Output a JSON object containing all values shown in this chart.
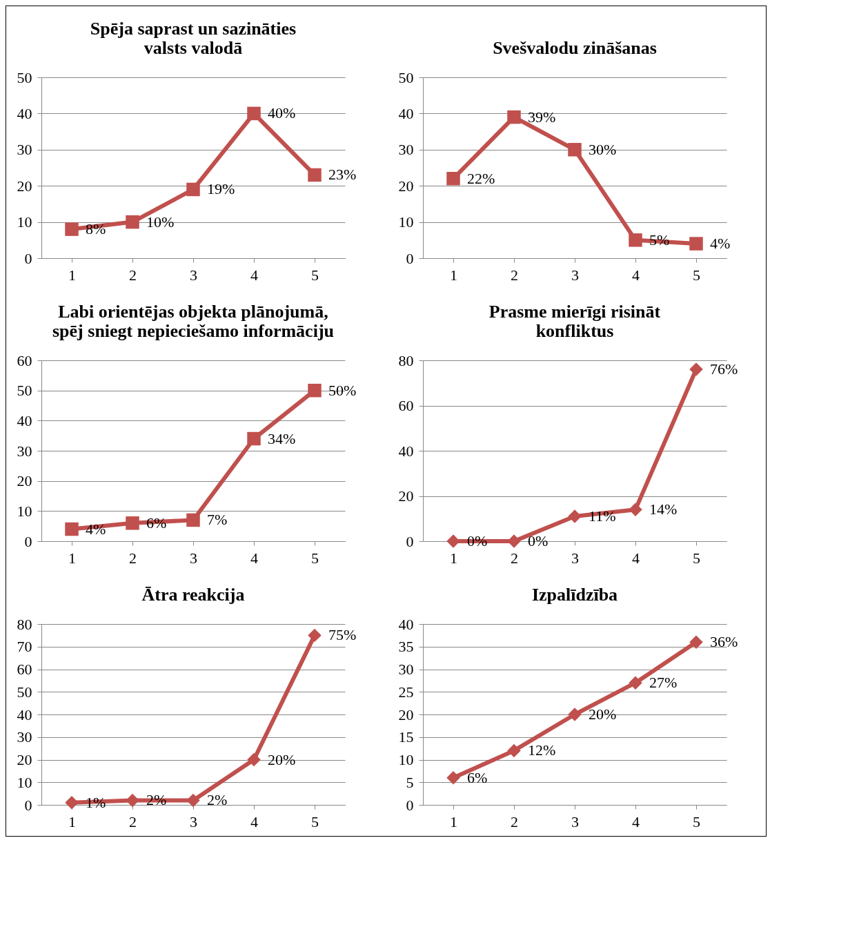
{
  "chart_data": [
    {
      "type": "line",
      "title": "Spēja saprast un sazināties\nvalsts valodā",
      "categories": [
        "1",
        "2",
        "3",
        "4",
        "5"
      ],
      "series": [
        {
          "color": "#c0504d",
          "values": [
            8,
            10,
            19,
            40,
            23
          ],
          "value_labels": [
            "8%",
            "10%",
            "19%",
            "40%",
            "23%"
          ]
        }
      ],
      "ylim": [
        0,
        50
      ],
      "yticks": [
        0,
        10,
        20,
        30,
        40,
        50
      ],
      "grid": "y",
      "marker": "square",
      "legend": false
    },
    {
      "type": "line",
      "title": "Svešvalodu zināšanas",
      "categories": [
        "1",
        "2",
        "3",
        "4",
        "5"
      ],
      "series": [
        {
          "color": "#c0504d",
          "values": [
            22,
            39,
            30,
            5,
            4
          ],
          "value_labels": [
            "22%",
            "39%",
            "30%",
            "5%",
            "4%"
          ]
        }
      ],
      "ylim": [
        0,
        50
      ],
      "yticks": [
        0,
        10,
        20,
        30,
        40,
        50
      ],
      "grid": "y",
      "marker": "square",
      "legend": false
    },
    {
      "type": "line",
      "title": "Labi orientējas objekta plānojumā,\nspēj sniegt nepieciešamo informāciju",
      "categories": [
        "1",
        "2",
        "3",
        "4",
        "5"
      ],
      "series": [
        {
          "color": "#c0504d",
          "values": [
            4,
            6,
            7,
            34,
            50
          ],
          "value_labels": [
            "4%",
            "6%",
            "7%",
            "34%",
            "50%"
          ]
        }
      ],
      "ylim": [
        0,
        60
      ],
      "yticks": [
        0,
        10,
        20,
        30,
        40,
        50,
        60
      ],
      "grid": "y",
      "marker": "square",
      "legend": false
    },
    {
      "type": "line",
      "title": "Prasme mierīgi risināt\nkonfliktus",
      "categories": [
        "1",
        "2",
        "3",
        "4",
        "5"
      ],
      "series": [
        {
          "color": "#c0504d",
          "values": [
            0,
            0,
            11,
            14,
            76
          ],
          "value_labels": [
            "0%",
            "0%",
            "11%",
            "14%",
            "76%"
          ]
        }
      ],
      "ylim": [
        0,
        80
      ],
      "yticks": [
        0,
        20,
        40,
        60,
        80
      ],
      "grid": "y",
      "marker": "diamond",
      "legend": false
    },
    {
      "type": "line",
      "title": "Ātra reakcija",
      "categories": [
        "1",
        "2",
        "3",
        "4",
        "5"
      ],
      "series": [
        {
          "color": "#c0504d",
          "values": [
            1,
            2,
            2,
            20,
            75
          ],
          "value_labels": [
            "1%",
            "2%",
            "2%",
            "20%",
            "75%"
          ]
        }
      ],
      "ylim": [
        0,
        80
      ],
      "yticks": [
        0,
        10,
        20,
        30,
        40,
        50,
        60,
        70,
        80
      ],
      "grid": "y",
      "marker": "diamond",
      "legend": false
    },
    {
      "type": "line",
      "title": "Izpalīdzība",
      "categories": [
        "1",
        "2",
        "3",
        "4",
        "5"
      ],
      "series": [
        {
          "color": "#c0504d",
          "values": [
            6,
            12,
            20,
            27,
            36
          ],
          "value_labels": [
            "6%",
            "12%",
            "20%",
            "27%",
            "36%"
          ]
        }
      ],
      "ylim": [
        0,
        40
      ],
      "yticks": [
        0,
        5,
        10,
        15,
        20,
        25,
        30,
        35,
        40
      ],
      "grid": "y",
      "marker": "diamond",
      "legend": false
    }
  ]
}
